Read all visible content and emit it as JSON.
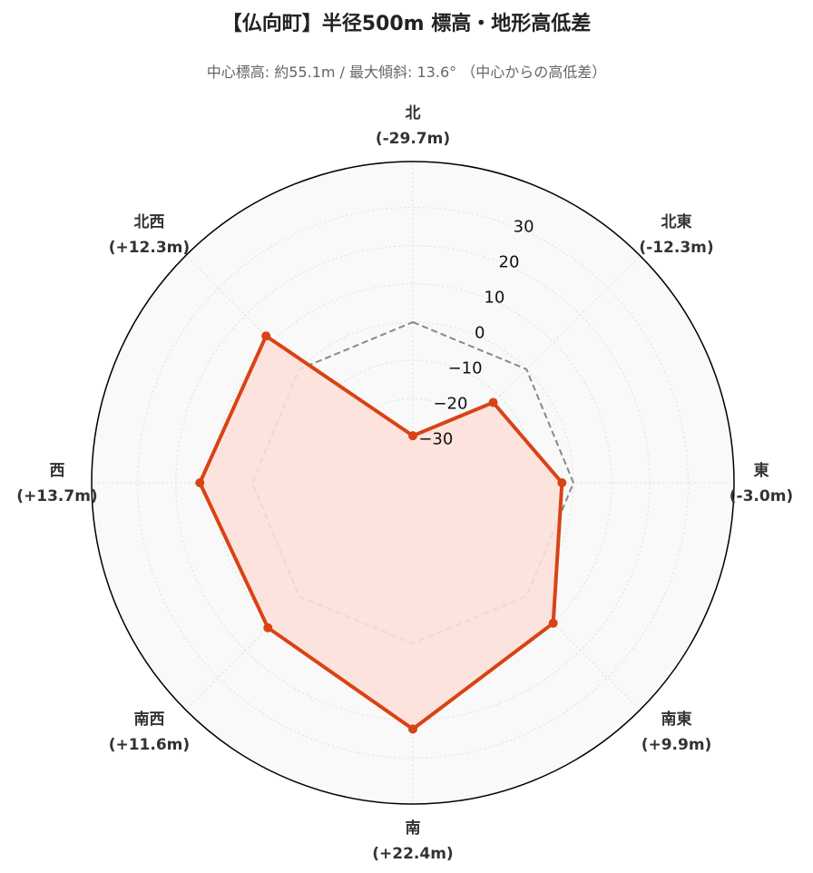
{
  "title": "【仏向町】半径500m 標高・地形高低差",
  "subtitle": "中心標高: 約55.1m / 最大傾斜: 13.6° （中心からの高低差）",
  "chart_data": {
    "type": "radar",
    "directions": [
      {
        "name": "北",
        "value": -29.7,
        "label": "(-29.7m)"
      },
      {
        "name": "北東",
        "value": -12.3,
        "label": "(-12.3m)"
      },
      {
        "name": "東",
        "value": -3.0,
        "label": "(-3.0m)"
      },
      {
        "name": "南東",
        "value": 9.9,
        "label": "(+9.9m)"
      },
      {
        "name": "南",
        "value": 22.4,
        "label": "(+22.4m)"
      },
      {
        "name": "南西",
        "value": 11.6,
        "label": "(+11.6m)"
      },
      {
        "name": "西",
        "value": 13.7,
        "label": "(+13.7m)"
      },
      {
        "name": "北西",
        "value": 12.3,
        "label": "(+12.3m)"
      }
    ],
    "reference_value": 0,
    "rlim": [
      -42,
      42
    ],
    "ticks": [
      -30,
      -20,
      -10,
      0,
      10,
      20,
      30
    ],
    "tick_labels": [
      "−30",
      "−20",
      "−10",
      "0",
      "10",
      "20",
      "30"
    ],
    "grid": true,
    "colors": {
      "line": "#d84315",
      "fill": "#fde0d9",
      "reference": "#888888",
      "background": "#f9f9f9",
      "grid": "#dddddd",
      "outline": "#000000"
    }
  }
}
